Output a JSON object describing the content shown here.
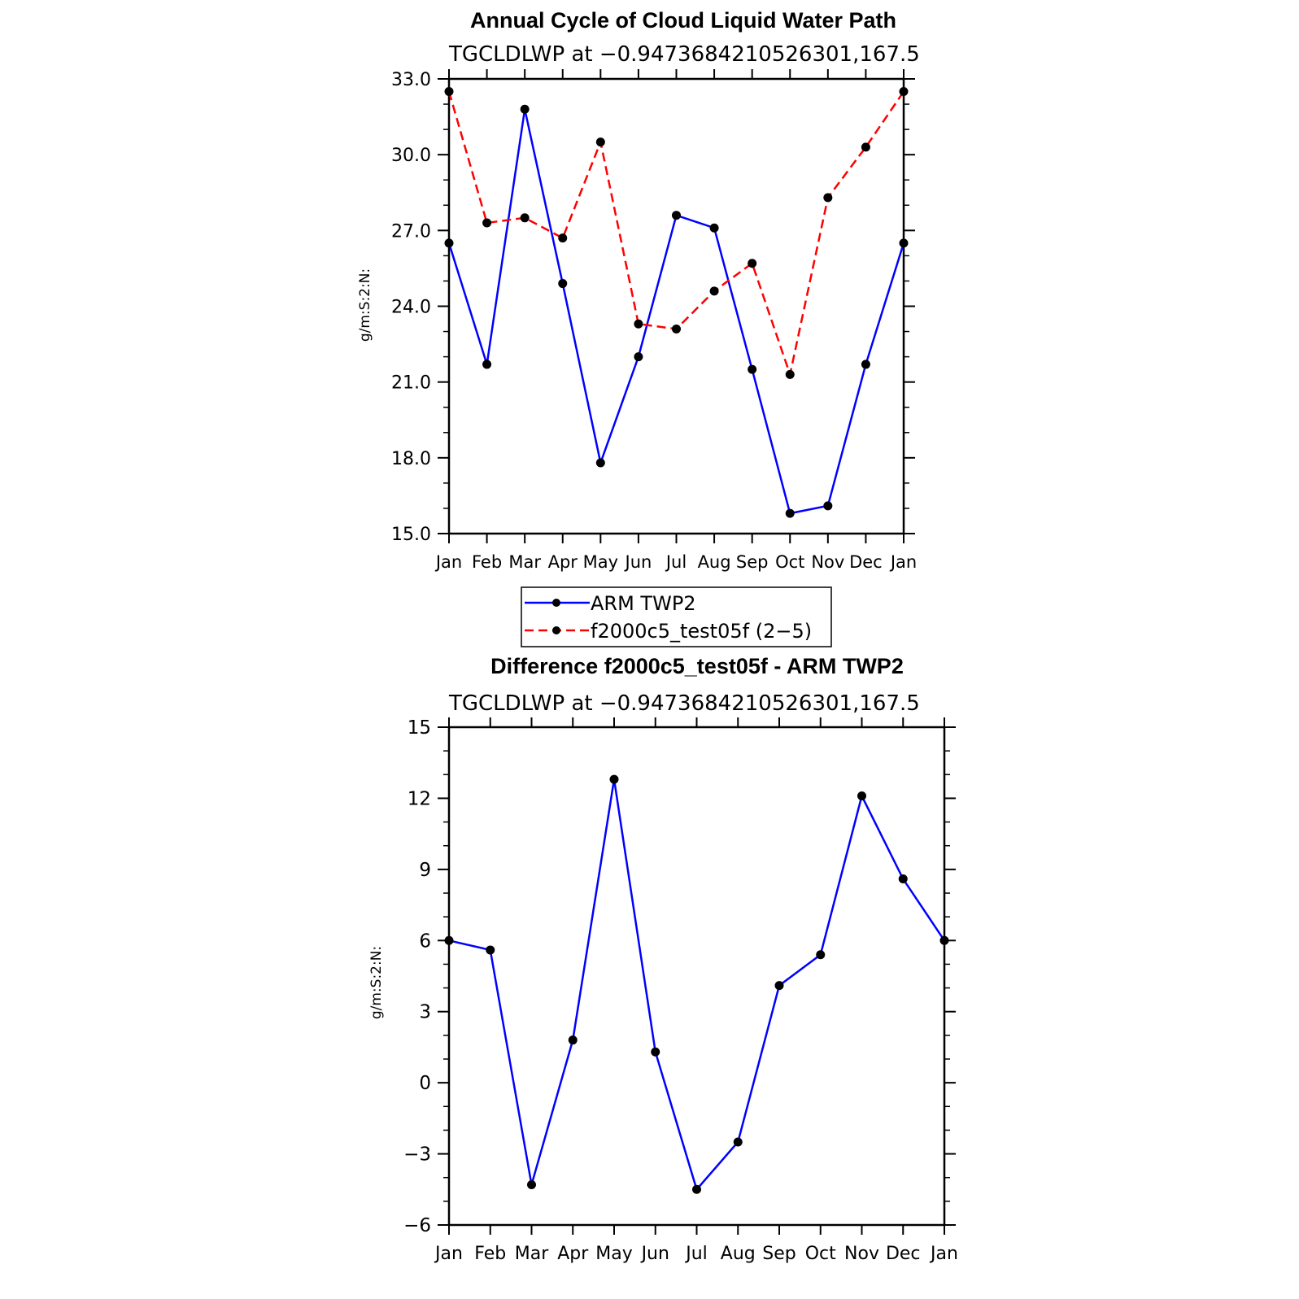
{
  "chart_data": [
    {
      "type": "line",
      "title": "Annual Cycle of Cloud Liquid Water Path",
      "subtitle": "TGCLDLWP at −0.9473684210526301,167.5",
      "ylabel": "g/m:S:2:N:",
      "xlabel": "",
      "categories": [
        "Jan",
        "Feb",
        "Mar",
        "Apr",
        "May",
        "Jun",
        "Jul",
        "Aug",
        "Sep",
        "Oct",
        "Nov",
        "Dec",
        "Jan"
      ],
      "ylim": [
        15.0,
        33.0
      ],
      "yticks": [
        "15.0",
        "18.0",
        "21.0",
        "24.0",
        "27.0",
        "30.0",
        "33.0"
      ],
      "series": [
        {
          "name": "ARM TWP2",
          "color": "#0000ff",
          "dash": "solid",
          "values": [
            26.5,
            21.7,
            31.8,
            24.9,
            17.8,
            22.0,
            27.6,
            27.1,
            21.5,
            15.8,
            16.1,
            21.7,
            26.5
          ]
        },
        {
          "name": "f2000c5_test05f (2−5)",
          "color": "#ff0000",
          "dash": "dashed",
          "values": [
            32.5,
            27.3,
            27.5,
            26.7,
            30.5,
            23.3,
            23.1,
            24.6,
            25.7,
            21.3,
            28.3,
            30.3,
            32.5
          ]
        }
      ],
      "legend": "bottom"
    },
    {
      "type": "line",
      "title": "Difference f2000c5_test05f - ARM TWP2",
      "subtitle": "TGCLDLWP at −0.9473684210526301,167.5",
      "ylabel": "g/m:S:2:N:",
      "xlabel": "",
      "categories": [
        "Jan",
        "Feb",
        "Mar",
        "Apr",
        "May",
        "Jun",
        "Jul",
        "Aug",
        "Sep",
        "Oct",
        "Nov",
        "Dec",
        "Jan"
      ],
      "ylim": [
        -6,
        15
      ],
      "yticks": [
        "−6",
        "−3",
        "0",
        "3",
        "6",
        "9",
        "12",
        "15"
      ],
      "series": [
        {
          "color": "#0000ff",
          "dash": "solid",
          "values": [
            6.0,
            5.6,
            -4.3,
            1.8,
            12.8,
            1.3,
            -4.5,
            -2.5,
            4.1,
            5.4,
            12.1,
            8.6,
            6.0
          ]
        }
      ]
    }
  ]
}
